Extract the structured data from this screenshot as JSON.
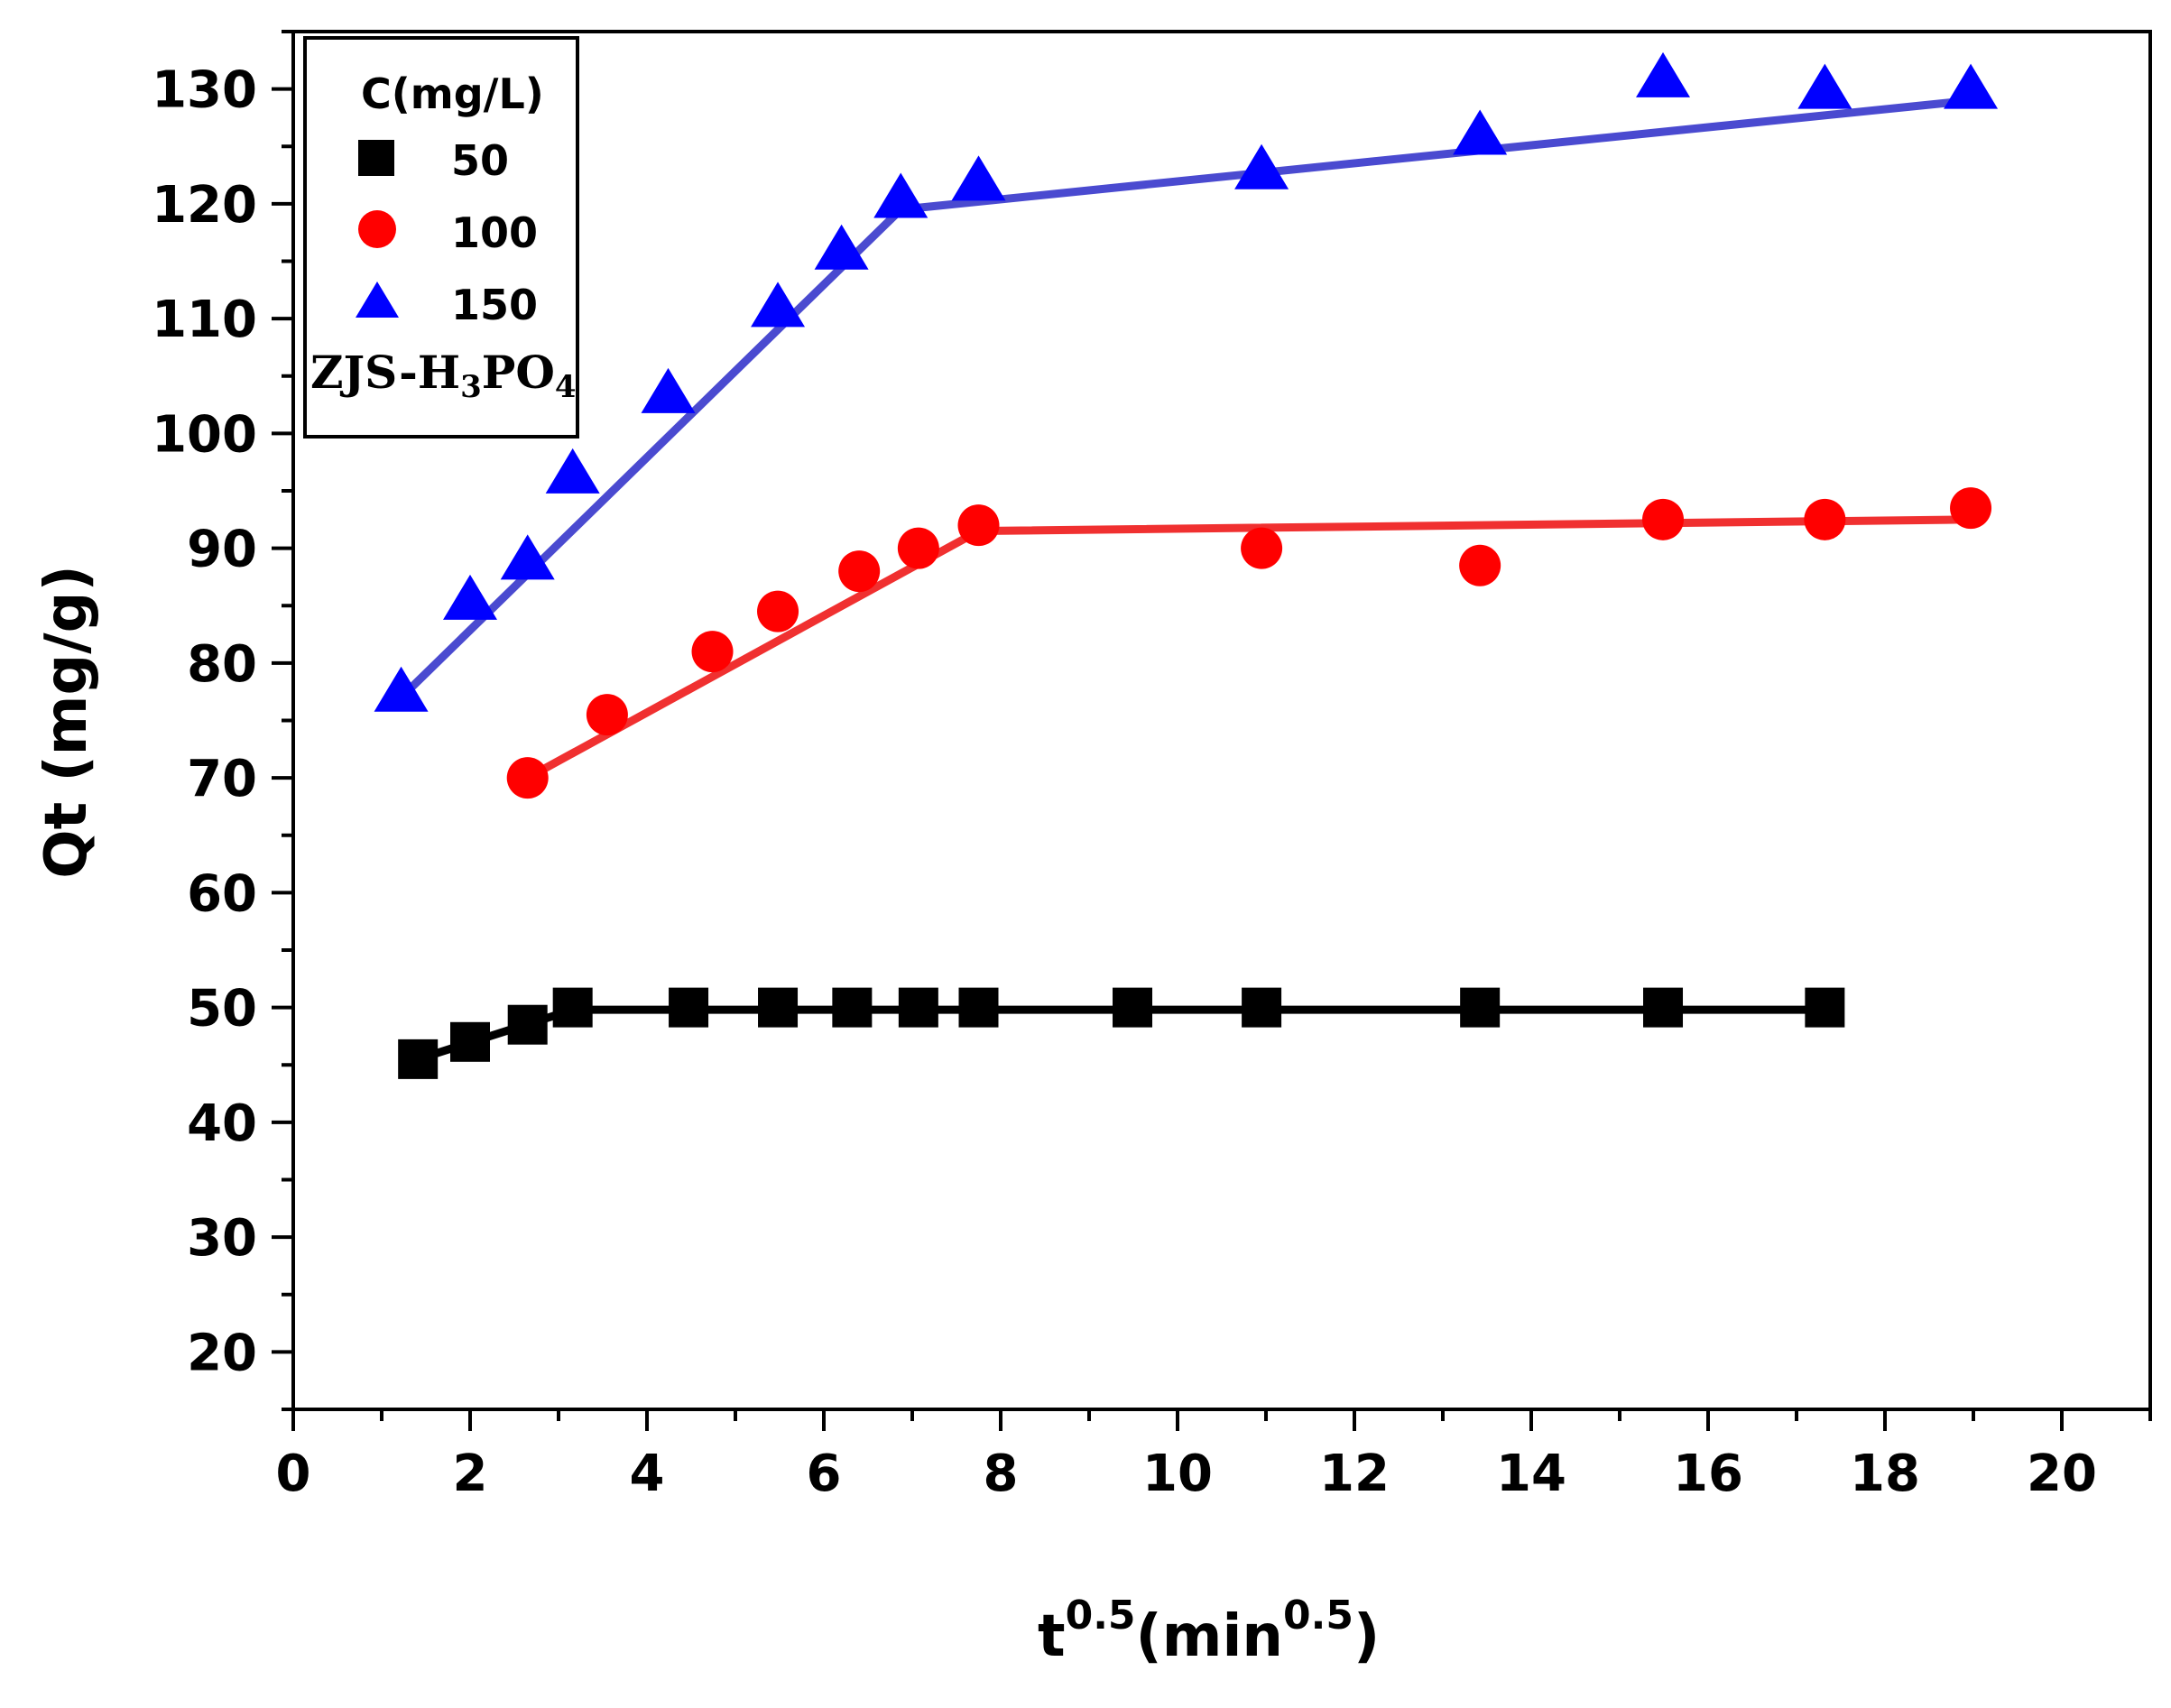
{
  "chart_data": {
    "type": "scatter",
    "title": "",
    "xlabel": {
      "base": "t",
      "exp": "0.5",
      "open": "(min",
      "unit_exp": "0.5",
      "close": ")"
    },
    "ylabel": "Qt (mg/g)",
    "xlim": [
      0,
      21
    ],
    "ylim": [
      15,
      135
    ],
    "xticks": [
      "0",
      "2",
      "4",
      "6",
      "8",
      "10",
      "12",
      "14",
      "16",
      "18",
      "20"
    ],
    "xtick_values": [
      0,
      2,
      4,
      6,
      8,
      10,
      12,
      14,
      16,
      18,
      20
    ],
    "yticks": [
      "20",
      "30",
      "40",
      "50",
      "60",
      "70",
      "80",
      "90",
      "100",
      "110",
      "120",
      "130"
    ],
    "ytick_values": [
      20,
      30,
      40,
      50,
      60,
      70,
      80,
      90,
      100,
      110,
      120,
      130
    ],
    "legend": {
      "title": "C(mg/L)",
      "sample": {
        "main": "ZJS-H",
        "sub1": "3",
        "mid": "PO",
        "sub2": "4"
      },
      "position": "top-left"
    },
    "series": [
      {
        "name": "50",
        "marker": "square",
        "color": "#000000",
        "x": [
          1.41,
          2.0,
          2.65,
          3.16,
          4.47,
          5.48,
          6.32,
          7.07,
          7.75,
          9.49,
          10.95,
          13.42,
          15.49,
          17.32
        ],
        "y": [
          45.5,
          47.0,
          48.5,
          50.0,
          50.0,
          50.0,
          50.0,
          50.0,
          50.0,
          50.0,
          50.0,
          50.0,
          50.0,
          50.0
        ],
        "fit_lines": [
          {
            "x": [
              1.41,
              3.16
            ],
            "y": [
              45.5,
              49.8
            ]
          },
          {
            "x": [
              3.16,
              17.32
            ],
            "y": [
              49.8,
              49.8
            ]
          }
        ]
      },
      {
        "name": "100",
        "marker": "circle",
        "color": "#ff0000",
        "x": [
          2.65,
          3.55,
          4.74,
          5.48,
          6.4,
          7.07,
          7.75,
          10.95,
          13.42,
          15.49,
          17.32,
          18.97
        ],
        "y": [
          70.0,
          75.5,
          81.0,
          84.5,
          88.0,
          90.0,
          92.0,
          90.0,
          88.5,
          92.5,
          92.5,
          93.5
        ],
        "fit_lines": [
          {
            "x": [
              2.65,
              7.75
            ],
            "y": [
              70.0,
              91.5
            ]
          },
          {
            "x": [
              7.75,
              18.97
            ],
            "y": [
              91.5,
              92.5
            ]
          }
        ]
      },
      {
        "name": "150",
        "marker": "triangle",
        "color": "#0000ff",
        "x": [
          1.22,
          2.0,
          2.65,
          3.16,
          4.24,
          5.48,
          6.2,
          6.87,
          7.75,
          10.95,
          13.42,
          15.49,
          17.32,
          18.97
        ],
        "y": [
          77.5,
          85.5,
          89.0,
          96.5,
          103.5,
          111.0,
          116.0,
          120.5,
          122.0,
          123.0,
          126.0,
          131.0,
          130.0,
          130.0
        ],
        "fit_lines": [
          {
            "x": [
              1.22,
              6.87
            ],
            "y": [
              77.0,
              119.5
            ]
          },
          {
            "x": [
              6.87,
              18.97
            ],
            "y": [
              119.5,
              129.0
            ]
          }
        ]
      }
    ]
  },
  "colors": {
    "fit_black": "#000000",
    "fit_red": "#f03030",
    "fit_blue": "#4a4ad0"
  }
}
